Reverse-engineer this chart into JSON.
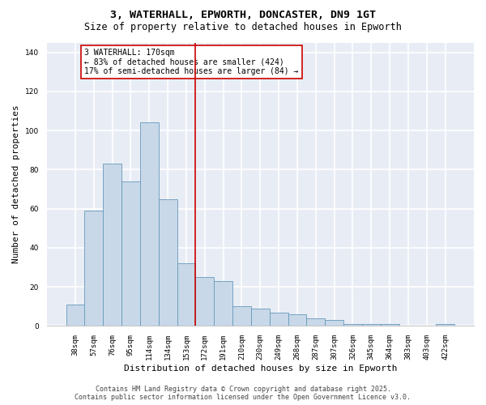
{
  "title": "3, WATERHALL, EPWORTH, DONCASTER, DN9 1GT",
  "subtitle": "Size of property relative to detached houses in Epworth",
  "xlabel": "Distribution of detached houses by size in Epworth",
  "ylabel": "Number of detached properties",
  "categories": [
    "38sqm",
    "57sqm",
    "76sqm",
    "95sqm",
    "114sqm",
    "134sqm",
    "153sqm",
    "172sqm",
    "191sqm",
    "210sqm",
    "230sqm",
    "249sqm",
    "268sqm",
    "287sqm",
    "307sqm",
    "326sqm",
    "345sqm",
    "364sqm",
    "383sqm",
    "403sqm",
    "422sqm"
  ],
  "values": [
    11,
    59,
    83,
    74,
    104,
    65,
    32,
    25,
    23,
    10,
    9,
    7,
    6,
    4,
    3,
    1,
    1,
    1,
    0,
    0,
    1
  ],
  "bar_color": "#c8d8e8",
  "bar_edge_color": "#6699bb",
  "vline_x_index": 7,
  "vline_color": "#cc0000",
  "annotation_text": "3 WATERHALL: 170sqm\n← 83% of detached houses are smaller (424)\n17% of semi-detached houses are larger (84) →",
  "annotation_box_color": "#ffffff",
  "annotation_box_edge_color": "#cc0000",
  "ylim": [
    0,
    145
  ],
  "yticks": [
    0,
    20,
    40,
    60,
    80,
    100,
    120,
    140
  ],
  "background_color": "#e8edf5",
  "grid_color": "#ffffff",
  "title_fontsize": 9.5,
  "subtitle_fontsize": 8.5,
  "axis_label_fontsize": 8,
  "tick_fontsize": 6.5,
  "annotation_fontsize": 7,
  "footer_text": "Contains HM Land Registry data © Crown copyright and database right 2025.\nContains public sector information licensed under the Open Government Licence v3.0.",
  "footer_fontsize": 6
}
